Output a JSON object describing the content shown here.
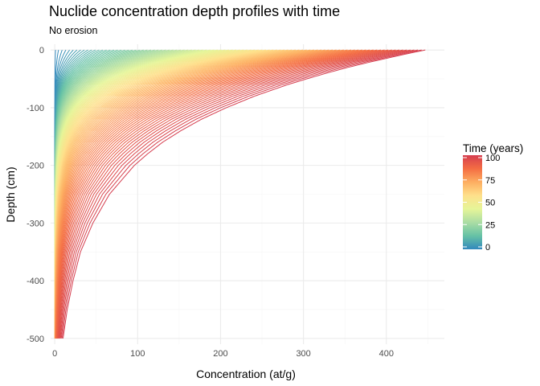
{
  "chart_data": {
    "type": "line",
    "title": "Nuclide concentration depth profiles with time",
    "subtitle": "No erosion",
    "xlabel": "Concentration (at/g)",
    "ylabel": "Depth (cm)",
    "xlim": [
      -5,
      470
    ],
    "ylim": [
      -510,
      10
    ],
    "x_ticks": [
      0,
      100,
      200,
      300,
      400
    ],
    "y_ticks": [
      0,
      -100,
      -200,
      -300,
      -400,
      -500
    ],
    "grid": true,
    "series_description_note": "",
    "series_count": 101,
    "time_range": [
      0,
      100
    ],
    "profile": {
      "depth_cm": [
        0,
        -5,
        -10,
        -20,
        -30,
        -40,
        -50,
        -60,
        -80,
        -100,
        -120,
        -140,
        -160,
        -180,
        -200,
        -250,
        -300,
        -350,
        -400,
        -450,
        -500
      ],
      "concentration_at_t100": [
        447,
        430,
        414,
        383,
        354,
        328,
        304,
        281,
        241,
        207,
        177,
        152,
        130,
        112,
        96,
        66,
        46,
        31,
        22,
        15,
        10
      ]
    },
    "legend": {
      "title": "Time (years)",
      "placement": "right",
      "ticks": [
        0,
        25,
        50,
        75,
        100
      ],
      "colors": [
        "#3288bd",
        "#66c2a5",
        "#abdda4",
        "#e6f598",
        "#fee08b",
        "#fdae61",
        "#f46d43",
        "#d53e4f"
      ]
    },
    "colors": {
      "grid_major": "#ebebeb",
      "grid_minor": "#f5f5f5"
    }
  }
}
